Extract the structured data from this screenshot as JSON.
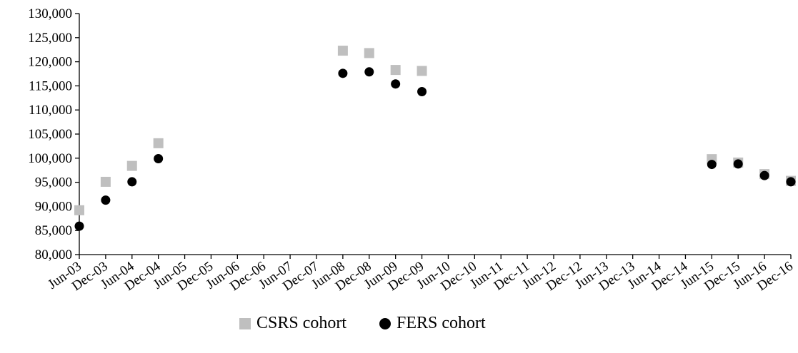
{
  "chart_data": {
    "type": "scatter",
    "categories": [
      "Jun-03",
      "Dec-03",
      "Jun-04",
      "Dec-04",
      "Jun-05",
      "Dec-05",
      "Jun-06",
      "Dec-06",
      "Jun-07",
      "Dec-07",
      "Jun-08",
      "Dec-08",
      "Jun-09",
      "Dec-09",
      "Jun-10",
      "Dec-10",
      "Jun-11",
      "Dec-11",
      "Jun-12",
      "Dec-12",
      "Jun-13",
      "Dec-13",
      "Jun-14",
      "Dec-14",
      "Jun-15",
      "Dec-15",
      "Jun-16",
      "Dec-16"
    ],
    "ylim": [
      80000,
      130000
    ],
    "yticks": [
      80000,
      85000,
      90000,
      95000,
      100000,
      105000,
      110000,
      115000,
      120000,
      125000,
      130000
    ],
    "ytick_labels": [
      "80,000",
      "85,000",
      "90,000",
      "95,000",
      "100,000",
      "105,000",
      "110,000",
      "115,000",
      "120,000",
      "125,000",
      "130,000"
    ],
    "grid": false,
    "legend_position": "bottom",
    "series": [
      {
        "name": "CSRS cohort",
        "marker": "square",
        "color": "#bfbfbf",
        "values": [
          89200,
          95100,
          98400,
          103100,
          null,
          null,
          null,
          null,
          null,
          null,
          122300,
          121800,
          118300,
          118100,
          null,
          null,
          null,
          null,
          null,
          null,
          null,
          null,
          null,
          null,
          99800,
          99100,
          96700,
          95300
        ]
      },
      {
        "name": "FERS cohort",
        "marker": "circle",
        "color": "#000000",
        "values": [
          85900,
          91300,
          95100,
          99900,
          null,
          null,
          null,
          null,
          null,
          null,
          117600,
          117900,
          115400,
          113800,
          null,
          null,
          null,
          null,
          null,
          null,
          null,
          null,
          null,
          null,
          98700,
          98800,
          96400,
          95100
        ]
      }
    ]
  }
}
